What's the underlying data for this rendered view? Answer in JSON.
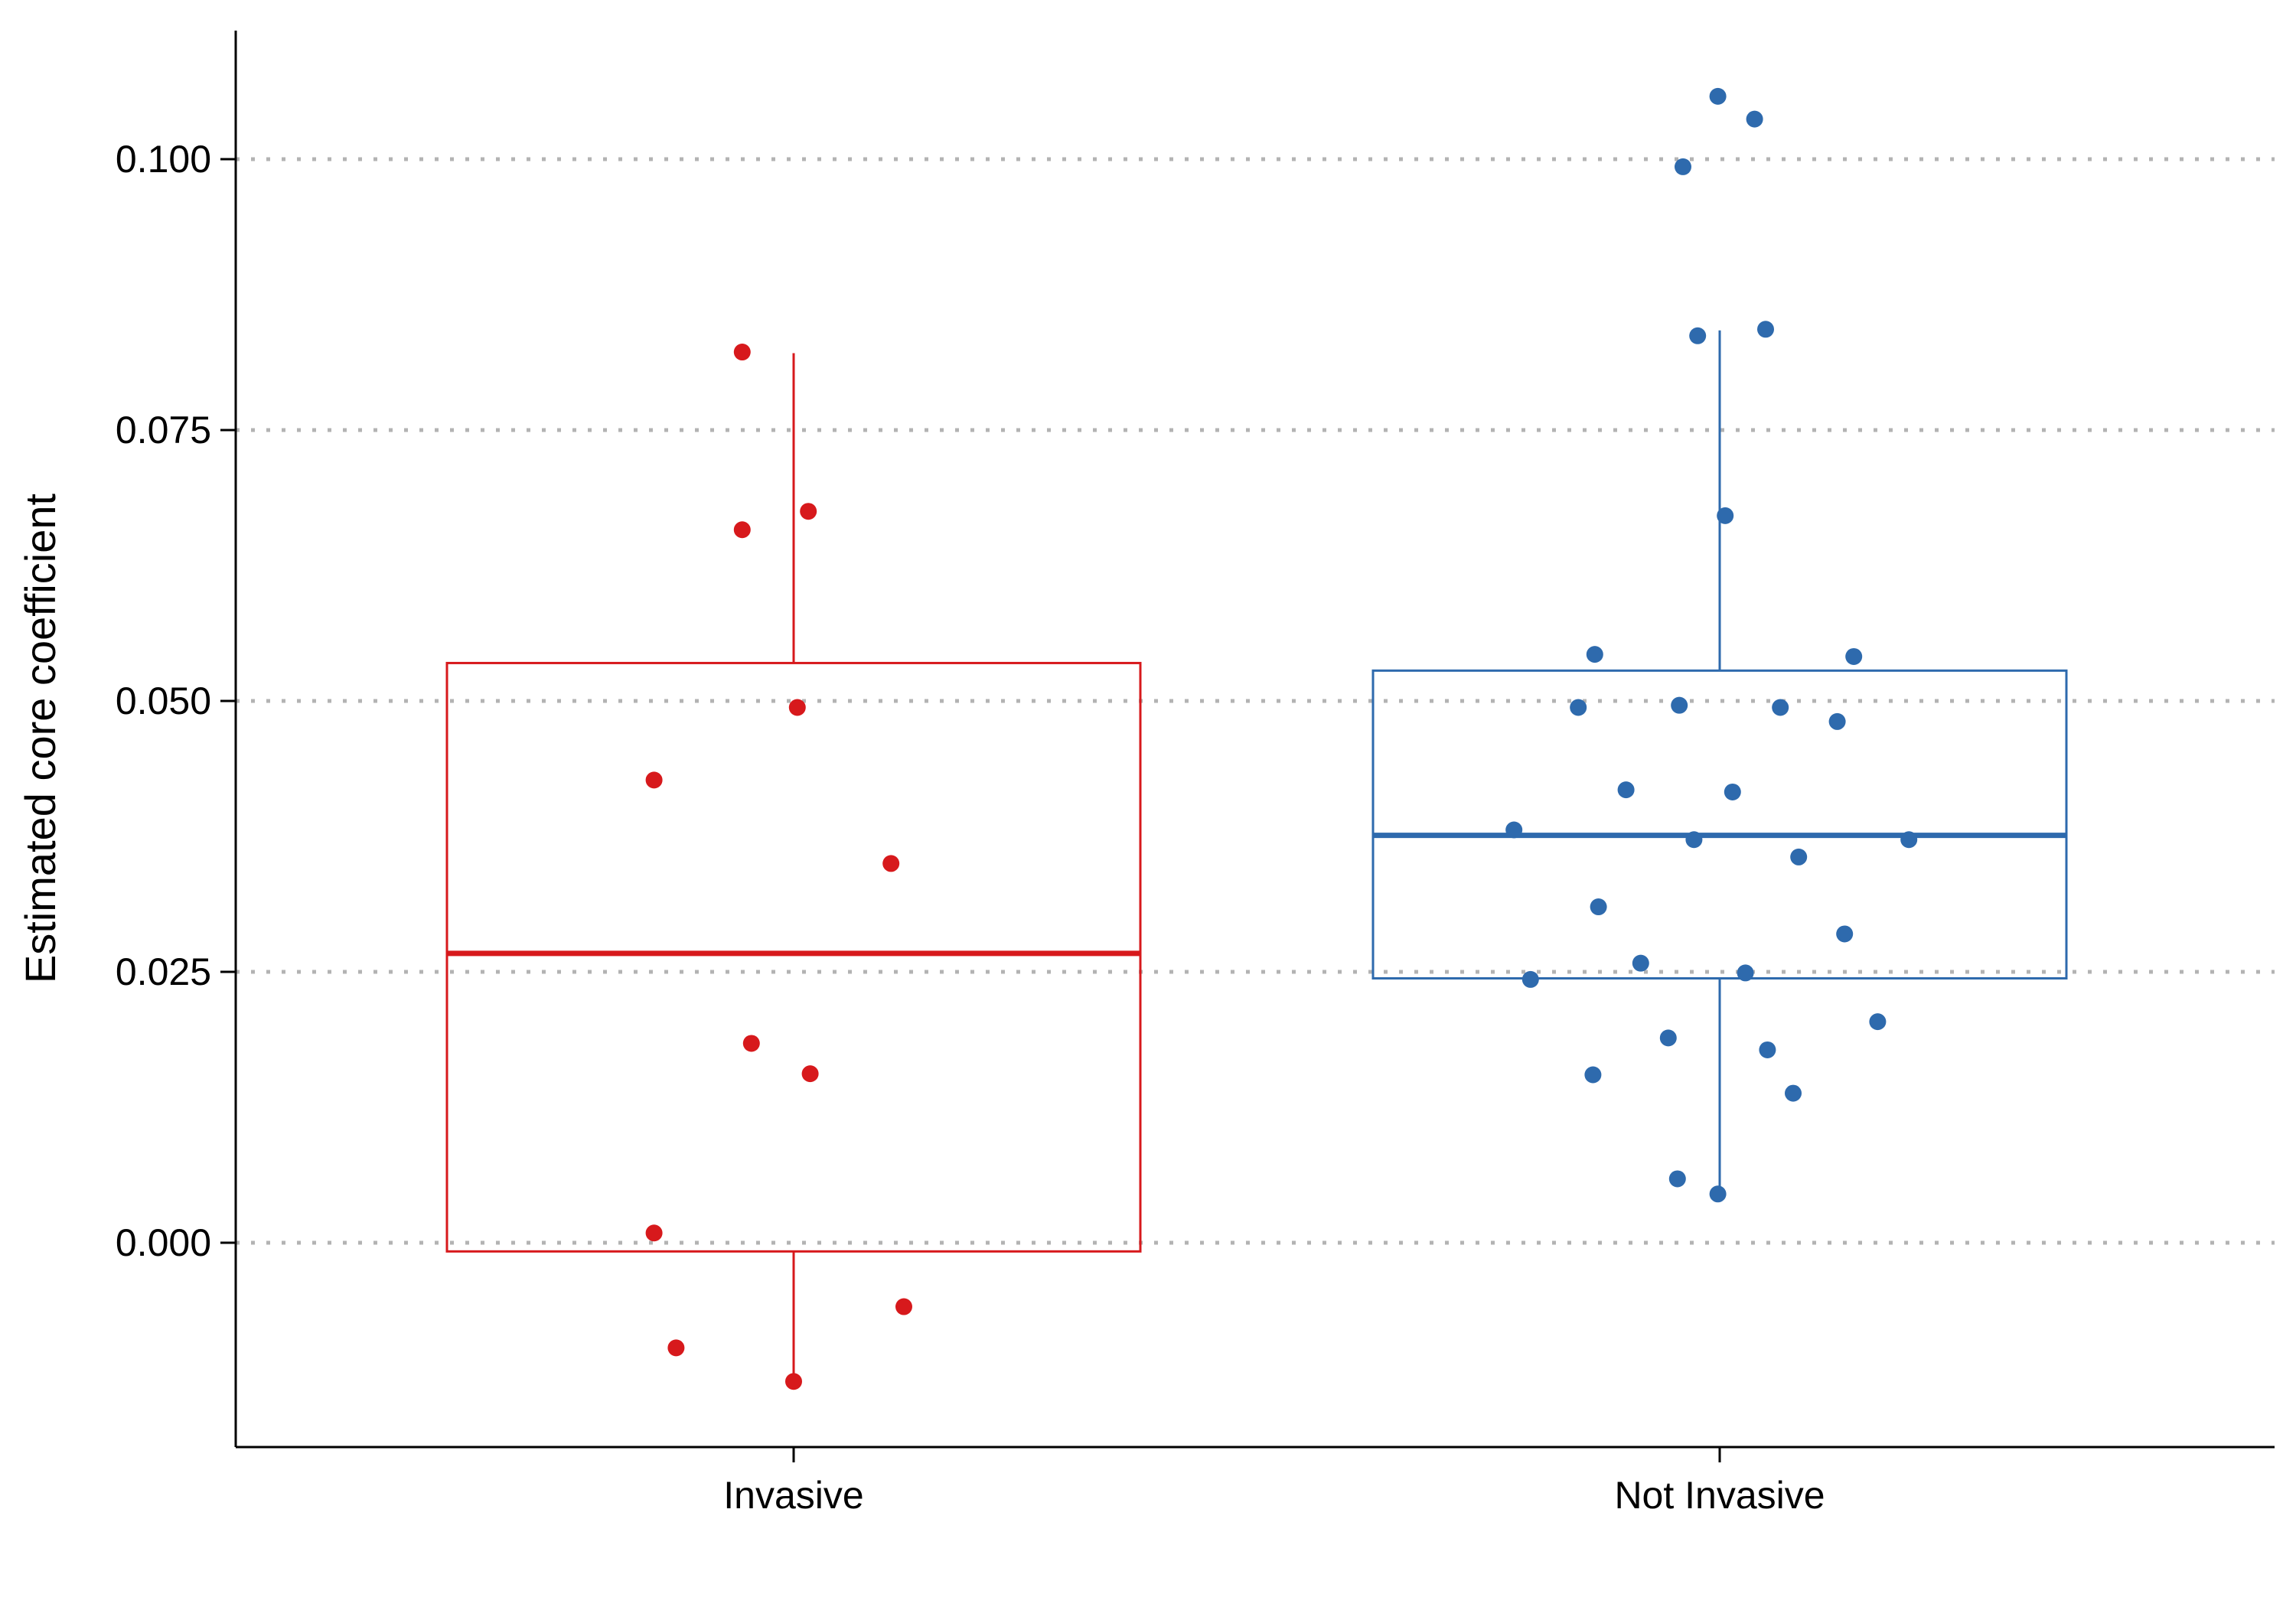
{
  "chart_data": {
    "type": "boxplot",
    "title": "",
    "xlabel": "",
    "ylabel": "Estimated core coefficient",
    "categories": [
      "Invasive",
      "Not Invasive"
    ],
    "y_ticks": [
      "0.000",
      "0.025",
      "0.050",
      "0.075",
      "0.100"
    ],
    "y_tick_values": [
      0,
      0.025,
      0.05,
      0.075,
      0.1
    ],
    "ylim": [
      -0.0188,
      0.1115
    ],
    "grid": "horizontal-dotted",
    "legend": "none",
    "series": [
      {
        "category": "Invasive",
        "color": "#d7191c",
        "box": {
          "whisker_low": -0.0128,
          "q1": -0.0008,
          "median": 0.0267,
          "q3": 0.0535,
          "whisker_high": 0.0821
        },
        "points": [
          {
            "jitter": -0.28,
            "y": 0.0822
          },
          {
            "jitter": 0.08,
            "y": 0.0675
          },
          {
            "jitter": -0.28,
            "y": 0.0658
          },
          {
            "jitter": 0.02,
            "y": 0.0494
          },
          {
            "jitter": -0.76,
            "y": 0.0427
          },
          {
            "jitter": 0.53,
            "y": 0.035
          },
          {
            "jitter": -0.23,
            "y": 0.0184
          },
          {
            "jitter": 0.09,
            "y": 0.0156
          },
          {
            "jitter": -0.76,
            "y": 0.0009
          },
          {
            "jitter": 0.6,
            "y": -0.0059
          },
          {
            "jitter": -0.64,
            "y": -0.0097
          },
          {
            "jitter": 0.0,
            "y": -0.0128
          }
        ]
      },
      {
        "category": "Not Invasive",
        "color": "#2e6aad",
        "box": {
          "whisker_low": 0.0045,
          "q1": 0.0244,
          "median": 0.0376,
          "q3": 0.0528,
          "whisker_high": 0.0842
        },
        "points": [
          {
            "jitter": -0.01,
            "y": 0.1058
          },
          {
            "jitter": 0.19,
            "y": 0.1037
          },
          {
            "jitter": -0.2,
            "y": 0.0993
          },
          {
            "jitter": 0.25,
            "y": 0.0843
          },
          {
            "jitter": -0.12,
            "y": 0.0837
          },
          {
            "jitter": 0.03,
            "y": 0.0671
          },
          {
            "jitter": -0.68,
            "y": 0.0543
          },
          {
            "jitter": 0.73,
            "y": 0.0541
          },
          {
            "jitter": -0.22,
            "y": 0.0496
          },
          {
            "jitter": -0.77,
            "y": 0.0494
          },
          {
            "jitter": 0.33,
            "y": 0.0494
          },
          {
            "jitter": 0.64,
            "y": 0.0481
          },
          {
            "jitter": -0.51,
            "y": 0.0418
          },
          {
            "jitter": 0.07,
            "y": 0.0416
          },
          {
            "jitter": -1.12,
            "y": 0.0381
          },
          {
            "jitter": -0.14,
            "y": 0.0372
          },
          {
            "jitter": 1.03,
            "y": 0.0372
          },
          {
            "jitter": 0.43,
            "y": 0.0356
          },
          {
            "jitter": -0.66,
            "y": 0.031
          },
          {
            "jitter": 0.68,
            "y": 0.0285
          },
          {
            "jitter": -0.43,
            "y": 0.0258
          },
          {
            "jitter": 0.14,
            "y": 0.0249
          },
          {
            "jitter": -1.03,
            "y": 0.0243
          },
          {
            "jitter": 0.86,
            "y": 0.0204
          },
          {
            "jitter": -0.28,
            "y": 0.0189
          },
          {
            "jitter": 0.26,
            "y": 0.0178
          },
          {
            "jitter": -0.69,
            "y": 0.0155
          },
          {
            "jitter": 0.4,
            "y": 0.0138
          },
          {
            "jitter": -0.23,
            "y": 0.0059
          },
          {
            "jitter": -0.01,
            "y": 0.0045
          }
        ]
      }
    ]
  }
}
